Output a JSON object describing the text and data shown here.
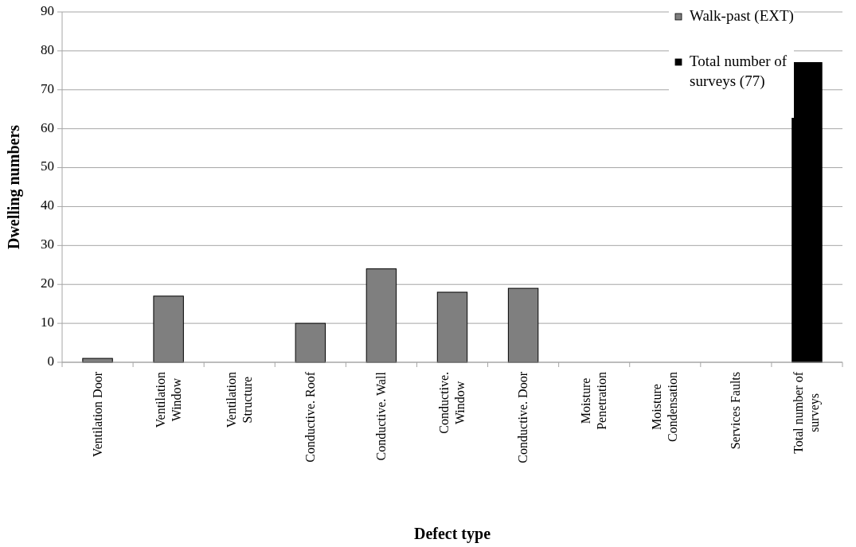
{
  "chart_data": {
    "type": "bar",
    "xlabel": "Defect type",
    "ylabel": "Dwelling numbers",
    "categories": [
      "Ventilation Door",
      "Ventilation Window",
      "Ventilation Structure",
      "Conductive. Roof",
      "Conductive. Wall",
      "Conductive. Window",
      "Conductive. Door",
      "Moisture Penetration",
      "Moisture Condensation",
      "Services Faults",
      "Total number of surveys"
    ],
    "series": [
      {
        "name": "Walk-past (EXT)",
        "color": "#7f7f7f",
        "values": [
          1,
          17,
          0,
          10,
          24,
          18,
          19,
          0,
          0,
          0,
          null
        ]
      },
      {
        "name": "Total number of surveys (77)",
        "color": "#000000",
        "values": [
          null,
          null,
          null,
          null,
          null,
          null,
          null,
          null,
          null,
          null,
          77
        ]
      }
    ],
    "stacked": true,
    "ylim": [
      0,
      90
    ],
    "yticks": [
      0,
      10,
      20,
      30,
      40,
      50,
      60,
      70,
      80,
      90
    ],
    "grid": "y",
    "legend": "top right"
  }
}
